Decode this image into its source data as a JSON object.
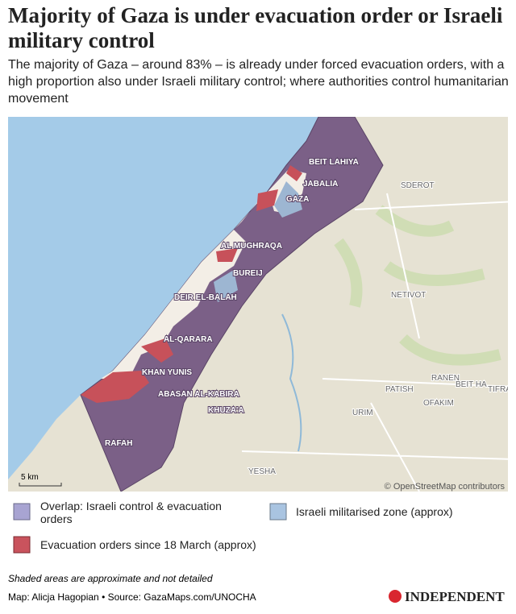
{
  "header": {
    "title": "Majority of Gaza is under evacuation order or Israeli military control",
    "subtitle": "The majority of Gaza – around 83% – is already under forced evacuation orders, with a high proportion also under Israeli military control; where authorities control humanitarian movement"
  },
  "map": {
    "gaza_labels": [
      "BEIT LAHIYA",
      "JABALIA",
      "GAZA",
      "AL MUGHRAQA",
      "BUREIJ",
      "DEIR EL-BALAH",
      "AL-QARARA",
      "KHAN YUNIS",
      "ABASAN AL-KABIRA",
      "KHUZA'A",
      "RAFAH"
    ],
    "israel_labels": [
      "SDEROT",
      "NETIVOT",
      "RANEN",
      "BEIT HA...",
      "PATISH",
      "OFAKIM",
      "TIFRA",
      "URIM",
      "YESHA"
    ],
    "scale": "5 km",
    "attribution": "© OpenStreetMap contributors"
  },
  "legend": [
    {
      "label": "Overlap: Israeli control & evacuation orders"
    },
    {
      "label": "Israeli militarised zone (approx)"
    },
    {
      "label": "Evacuation orders since 18 March (approx)"
    }
  ],
  "footer": {
    "note": "Shaded areas are approximate and not detailed",
    "source": "Map: Alicja Hagopian • Source: GazaMaps.com/UNOCHA",
    "logo": "INDEPENDENT"
  }
}
